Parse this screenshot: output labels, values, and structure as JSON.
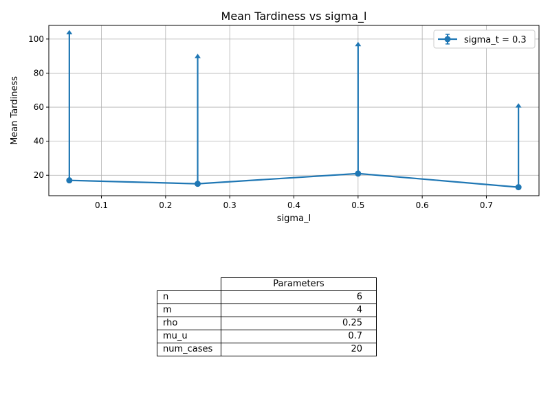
{
  "chart_data": {
    "type": "line",
    "title": "Mean Tardiness vs sigma_l",
    "xlabel": "sigma_l",
    "ylabel": "Mean Tardiness",
    "xlim": [
      0.018,
      0.782
    ],
    "ylim": [
      8,
      108
    ],
    "xticks": [
      0.1,
      0.2,
      0.3,
      0.4,
      0.5,
      0.6,
      0.7
    ],
    "xtick_labels": [
      "0.1",
      "0.2",
      "0.3",
      "0.4",
      "0.5",
      "0.6",
      "0.7"
    ],
    "yticks": [
      20,
      40,
      60,
      80,
      100
    ],
    "ytick_labels": [
      "20",
      "40",
      "60",
      "80",
      "100"
    ],
    "grid": true,
    "legend_position": "top-right",
    "color": "#1f77b4",
    "series": [
      {
        "name": "sigma_t = 0.3",
        "x": [
          0.05,
          0.25,
          0.5,
          0.75
        ],
        "y": [
          17,
          15,
          21,
          13
        ],
        "error_upper": [
          105,
          91,
          98,
          62
        ],
        "error_lower_clipped": true
      }
    ]
  },
  "table": {
    "col_header": "Parameters",
    "rows": [
      {
        "key": "n",
        "value": "6"
      },
      {
        "key": "m",
        "value": "4"
      },
      {
        "key": "rho",
        "value": "0.25"
      },
      {
        "key": "mu_u",
        "value": "0.7"
      },
      {
        "key": "num_cases",
        "value": "20"
      }
    ]
  }
}
